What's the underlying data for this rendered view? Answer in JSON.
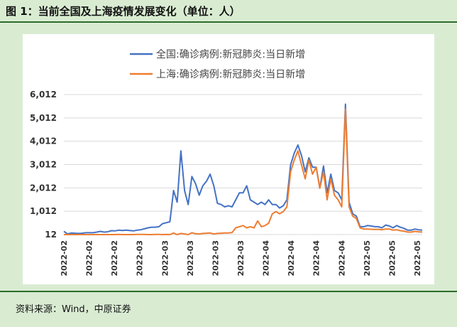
{
  "figure": {
    "title": "图 1：当前全国及上海疫情发展变化（单位：人）",
    "source": "资料来源：Wind，中原证券"
  },
  "chart_data": {
    "type": "line",
    "y_ticks": [
      "6,012",
      "5,012",
      "4,012",
      "3,012",
      "2,012",
      "1,012",
      "12"
    ],
    "ylim": [
      12,
      6012
    ],
    "x_tick_labels": [
      "2022-02",
      "2022-02",
      "2022-02",
      "2022-03",
      "2022-03",
      "2022-03",
      "2022-03",
      "2022-03",
      "2022-04",
      "2022-04",
      "2022-04",
      "2022-04",
      "2022-05",
      "2022-05",
      "2022-05"
    ],
    "grid": true,
    "legend_position": "top",
    "colors": {
      "national": "#4472c4",
      "shanghai": "#ed7d31"
    },
    "series": [
      {
        "name": "全国:确诊病例:新冠肺炎:当日新增",
        "color": "#4472c4",
        "values": [
          150,
          40,
          80,
          70,
          60,
          70,
          90,
          90,
          90,
          120,
          150,
          120,
          130,
          180,
          170,
          200,
          190,
          200,
          190,
          170,
          200,
          220,
          260,
          300,
          330,
          330,
          350,
          480,
          520,
          560,
          1900,
          1400,
          3600,
          1900,
          1300,
          2500,
          2200,
          1700,
          2100,
          2300,
          2600,
          2100,
          1350,
          1300,
          1200,
          1250,
          1200,
          1500,
          1800,
          1800,
          2100,
          1500,
          1400,
          1300,
          1400,
          1300,
          1500,
          1300,
          1300,
          1150,
          1250,
          1500,
          3000,
          3500,
          3850,
          3400,
          2700,
          3300,
          2900,
          2900,
          2000,
          2950,
          1800,
          2600,
          1900,
          1800,
          1500,
          5600,
          1400,
          900,
          800,
          350,
          350,
          400,
          380,
          350,
          350,
          300,
          420,
          380,
          300,
          400,
          330,
          280,
          200,
          200,
          250,
          220,
          200
        ]
      },
      {
        "name": "上海:确诊病例:新冠肺炎:当日新增",
        "color": "#ed7d31",
        "values": [
          12,
          12,
          12,
          12,
          12,
          12,
          12,
          12,
          12,
          12,
          12,
          12,
          12,
          12,
          12,
          20,
          12,
          12,
          12,
          12,
          20,
          20,
          20,
          12,
          12,
          20,
          20,
          12,
          20,
          12,
          80,
          12,
          60,
          40,
          12,
          90,
          50,
          40,
          60,
          70,
          80,
          40,
          60,
          70,
          80,
          80,
          100,
          300,
          350,
          400,
          300,
          350,
          300,
          600,
          350,
          400,
          500,
          900,
          1000,
          900,
          1000,
          1200,
          2700,
          3200,
          3600,
          3000,
          2400,
          3200,
          2600,
          2900,
          2000,
          2700,
          1500,
          2400,
          1700,
          1500,
          1200,
          5400,
          1200,
          800,
          700,
          300,
          250,
          250,
          240,
          230,
          240,
          220,
          250,
          250,
          200,
          220,
          180,
          160,
          120,
          120,
          150,
          130,
          120
        ]
      }
    ]
  }
}
